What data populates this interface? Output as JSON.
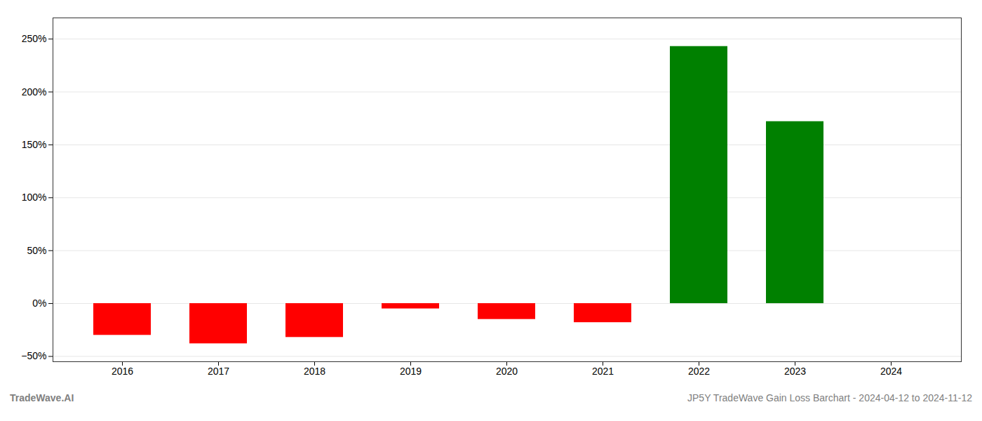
{
  "chart_data": {
    "type": "bar",
    "categories": [
      "2016",
      "2017",
      "2018",
      "2019",
      "2020",
      "2021",
      "2022",
      "2023",
      "2024"
    ],
    "values": [
      -30,
      -38,
      -32,
      -5,
      -15,
      -18,
      243,
      172,
      0
    ],
    "colors": [
      "#ff0000",
      "#ff0000",
      "#ff0000",
      "#ff0000",
      "#ff0000",
      "#ff0000",
      "#008000",
      "#008000",
      "#ff0000"
    ],
    "ylim": [
      -55,
      270
    ],
    "yticks": [
      {
        "value": -50,
        "label": "−50%"
      },
      {
        "value": 0,
        "label": "0%"
      },
      {
        "value": 50,
        "label": "50%"
      },
      {
        "value": 100,
        "label": "100%"
      },
      {
        "value": 150,
        "label": "150%"
      },
      {
        "value": 200,
        "label": "200%"
      },
      {
        "value": 250,
        "label": "250%"
      }
    ],
    "grid": true,
    "annotations": [
      "TradeWave.AI",
      "JP5Y TradeWave Gain Loss Barchart - 2024-04-12 to 2024-11-12"
    ]
  }
}
